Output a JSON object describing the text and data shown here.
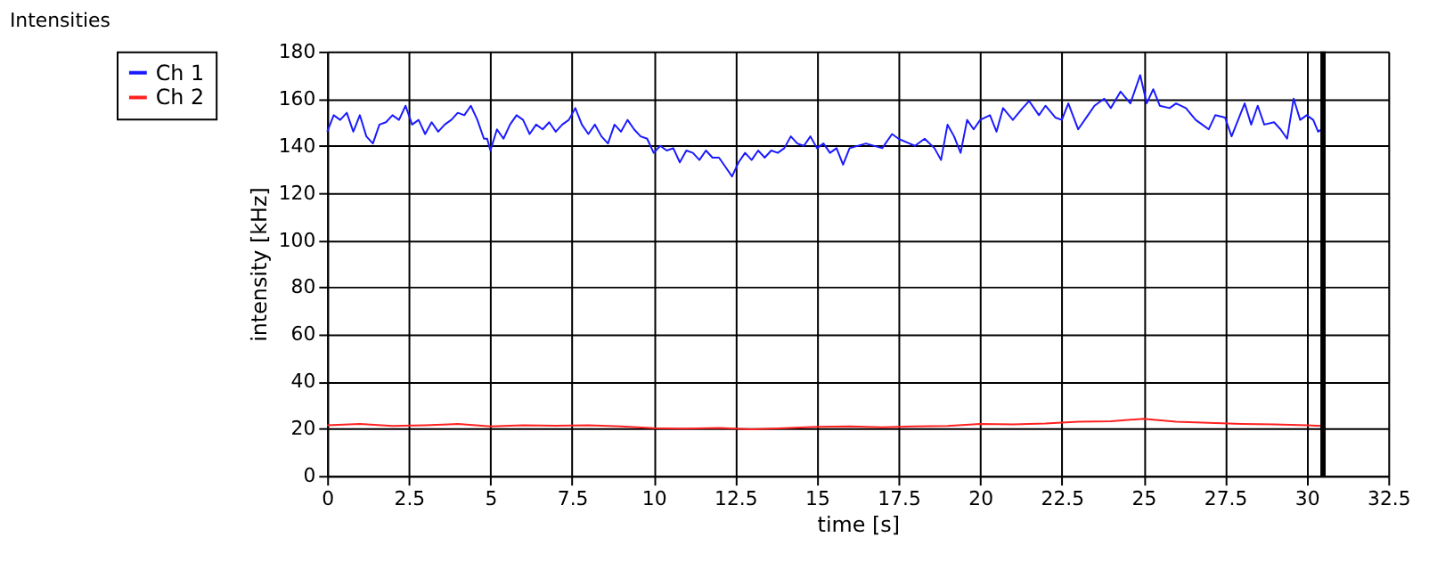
{
  "chart_data": {
    "type": "line",
    "title": "Intensities",
    "xlabel": "time [s]",
    "ylabel": "intensity [kHz]",
    "xlim": [
      0,
      32.5
    ],
    "xticks": [
      0,
      2.5,
      5,
      7.5,
      10,
      12.5,
      15,
      17.5,
      20,
      22.5,
      25,
      27.5,
      30,
      32.5
    ],
    "ylim": [
      0,
      180
    ],
    "yticks": [
      0,
      20,
      40,
      60,
      80,
      100,
      120,
      140,
      160,
      180
    ],
    "grid": true,
    "legend": "left",
    "line_style": "solid",
    "marker": "none",
    "ref_lines": [
      {
        "axis": "x",
        "value": 30.5,
        "color": "#000000"
      }
    ],
    "series": [
      {
        "name": "Ch 1",
        "color": "#1a1aff",
        "x": [
          0,
          0.2,
          0.4,
          0.6,
          0.8,
          1.0,
          1.2,
          1.4,
          1.6,
          1.8,
          2.0,
          2.2,
          2.4,
          2.6,
          2.8,
          3.0,
          3.2,
          3.4,
          3.6,
          3.8,
          4.0,
          4.2,
          4.4,
          4.6,
          4.8,
          4.9,
          5.0,
          5.2,
          5.4,
          5.6,
          5.8,
          6.0,
          6.2,
          6.4,
          6.6,
          6.8,
          7.0,
          7.2,
          7.4,
          7.6,
          7.8,
          8.0,
          8.2,
          8.4,
          8.6,
          8.8,
          9.0,
          9.2,
          9.4,
          9.6,
          9.8,
          10.0,
          10.2,
          10.4,
          10.6,
          10.8,
          11.0,
          11.2,
          11.4,
          11.6,
          11.8,
          12.0,
          12.2,
          12.4,
          12.6,
          12.8,
          13.0,
          13.2,
          13.4,
          13.6,
          13.8,
          14.0,
          14.2,
          14.4,
          14.6,
          14.8,
          15.0,
          15.2,
          15.4,
          15.6,
          15.8,
          16.0,
          16.5,
          17.0,
          17.3,
          17.5,
          18.0,
          18.3,
          18.6,
          18.8,
          19.0,
          19.2,
          19.4,
          19.6,
          19.8,
          20.0,
          20.3,
          20.5,
          20.7,
          21.0,
          21.3,
          21.5,
          21.8,
          22.0,
          22.3,
          22.5,
          22.7,
          23.0,
          23.3,
          23.5,
          23.8,
          24.0,
          24.3,
          24.6,
          24.9,
          25.1,
          25.3,
          25.5,
          25.8,
          26.0,
          26.3,
          26.6,
          26.8,
          27.0,
          27.2,
          27.5,
          27.7,
          27.9,
          28.1,
          28.3,
          28.5,
          28.7,
          29.0,
          29.2,
          29.4,
          29.6,
          29.8,
          30.0,
          30.2,
          30.35,
          30.45
        ],
        "values": [
          146,
          153,
          151,
          154,
          146,
          153,
          144,
          141,
          149,
          150,
          153,
          151,
          157,
          149,
          151,
          145,
          150,
          146,
          149,
          151,
          154,
          153,
          157,
          151,
          143,
          143,
          138,
          147,
          143,
          149,
          153,
          151,
          145,
          149,
          147,
          150,
          146,
          149,
          151,
          156,
          149,
          145,
          149,
          144,
          141,
          149,
          146,
          151,
          147,
          144,
          143,
          137,
          140,
          138,
          139,
          133,
          138,
          137,
          134,
          138,
          135,
          135,
          131,
          127,
          133,
          137,
          134,
          138,
          135,
          138,
          137,
          139,
          144,
          141,
          140,
          144,
          139,
          141,
          137,
          139,
          132,
          139,
          141,
          139,
          145,
          143,
          140,
          143,
          139,
          134,
          149,
          144,
          137,
          151,
          147,
          151,
          153,
          146,
          156,
          151,
          156,
          159,
          153,
          157,
          152,
          151,
          158,
          147,
          153,
          157,
          160,
          156,
          163,
          158,
          170,
          158,
          164,
          157,
          156,
          158,
          156,
          151,
          149,
          147,
          153,
          152,
          144,
          151,
          158,
          149,
          157,
          149,
          150,
          147,
          143,
          160,
          151,
          153,
          151,
          146,
          147
        ]
      },
      {
        "name": "Ch 2",
        "color": "#ff2020",
        "x": [
          0,
          1,
          2,
          3,
          4,
          5,
          6,
          7,
          8,
          9,
          10,
          11,
          12,
          13,
          14,
          15,
          16,
          17,
          18,
          19,
          20,
          21,
          22,
          23,
          24,
          25,
          26,
          27,
          28,
          29,
          30,
          30.45
        ],
        "values": [
          21.5,
          22,
          21.2,
          21.5,
          22,
          21,
          21.5,
          21.3,
          21.5,
          21,
          20.2,
          20,
          20.3,
          19.8,
          20.2,
          20.8,
          21,
          20.6,
          21,
          21.2,
          22,
          21.8,
          22.2,
          23,
          23.2,
          24.2,
          23,
          22.5,
          22,
          21.8,
          21.5,
          21.2
        ]
      }
    ]
  }
}
